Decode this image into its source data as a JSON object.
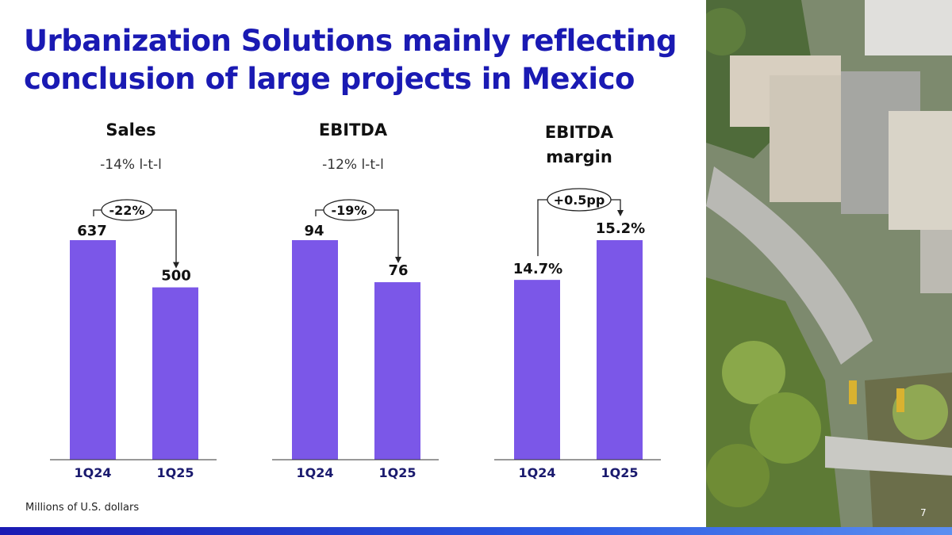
{
  "title": "Urbanization Solutions mainly reflecting conclusion of large projects in Mexico",
  "footnote": "Millions of U.S. dollars",
  "page_number": "7",
  "colors": {
    "bar": "#7b57e8",
    "title": "#1a1ab3",
    "accent_bar": "#1a1ab3"
  },
  "chart_data": [
    {
      "type": "bar",
      "title": "Sales",
      "subtitle": "-14% l-t-l",
      "categories": [
        "1Q24",
        "1Q25"
      ],
      "values": [
        637,
        500
      ],
      "value_labels": [
        "637",
        "500"
      ],
      "change_label": "-22%"
    },
    {
      "type": "bar",
      "title": "EBITDA",
      "subtitle": "-12% l-t-l",
      "categories": [
        "1Q24",
        "1Q25"
      ],
      "values": [
        94,
        76
      ],
      "value_labels": [
        "94",
        "76"
      ],
      "change_label": "-19%"
    },
    {
      "type": "bar",
      "title": "EBITDA margin",
      "subtitle": "",
      "categories": [
        "1Q24",
        "1Q25"
      ],
      "values": [
        14.7,
        15.2
      ],
      "value_labels": [
        "14.7%",
        "15.2%"
      ],
      "change_label": "+0.5pp"
    }
  ]
}
